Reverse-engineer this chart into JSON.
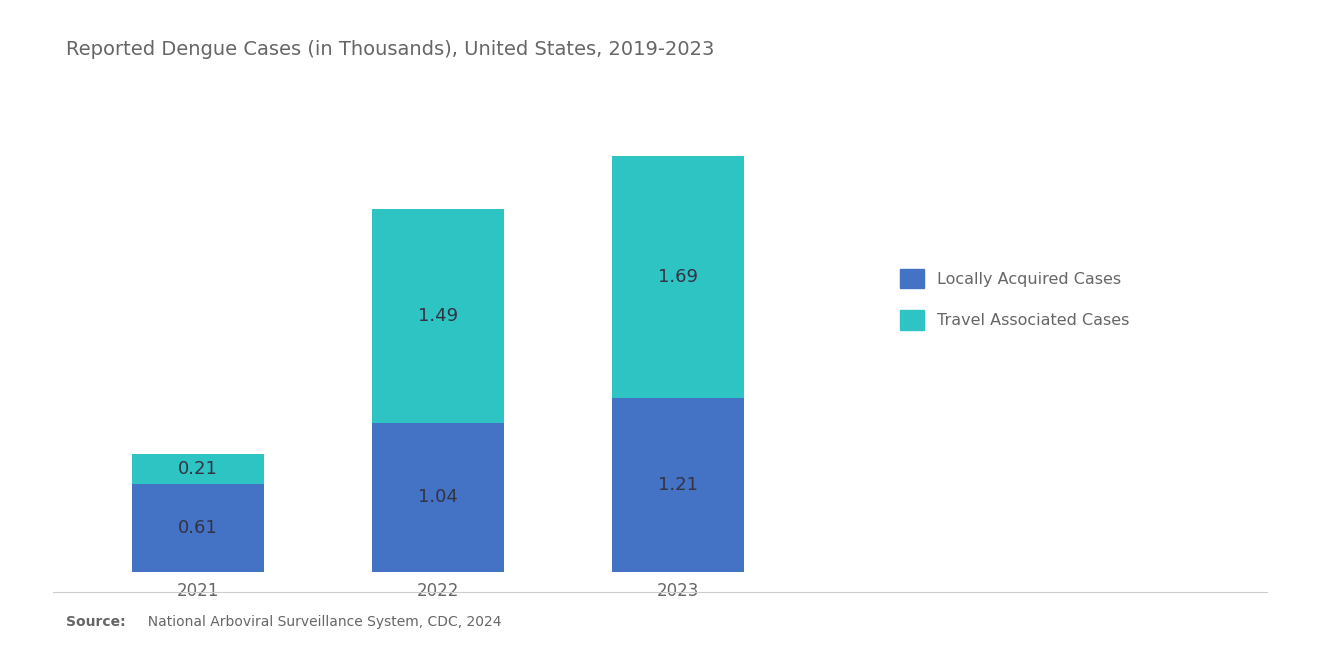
{
  "title": "Reported Dengue Cases (in Thousands), United States, 2019-2023",
  "categories": [
    "2021",
    "2022",
    "2023"
  ],
  "locally_acquired": [
    0.61,
    1.04,
    1.21
  ],
  "travel_associated": [
    0.21,
    1.49,
    1.69
  ],
  "locally_acquired_color": "#4472C4",
  "travel_associated_color": "#2EC4C4",
  "locally_acquired_label": "Locally Acquired Cases",
  "travel_associated_label": "Travel Associated Cases",
  "bar_width": 0.55,
  "title_fontsize": 14,
  "tick_fontsize": 12,
  "source_bold": "Source:",
  "source_text": "  National Arboviral Surveillance System, CDC, 2024",
  "background_color": "#ffffff",
  "text_color": "#666666",
  "value_label_color": "#333344",
  "value_label_fontsize": 13,
  "ylim_factor": 1.15,
  "x_positions": [
    0,
    1,
    2
  ],
  "xlim_left": -0.55,
  "xlim_right": 2.75
}
